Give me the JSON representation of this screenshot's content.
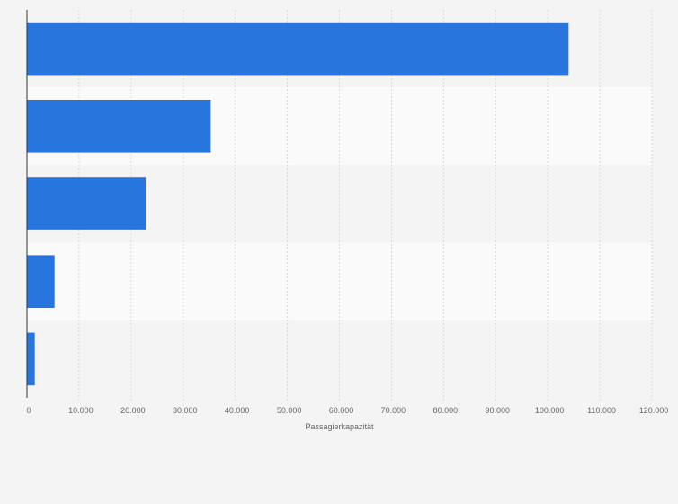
{
  "chart_data": {
    "type": "bar",
    "orientation": "horizontal",
    "categories": [
      "",
      "",
      "",
      "",
      ""
    ],
    "values": [
      104000,
      35300,
      22800,
      5300,
      1500
    ],
    "xlabel": "Passagierkapazität",
    "ylabel": "",
    "xlim": [
      0,
      120000
    ],
    "xticks": [
      0,
      10000,
      20000,
      30000,
      40000,
      50000,
      60000,
      70000,
      80000,
      90000,
      100000,
      110000,
      120000
    ],
    "xtick_labels": [
      "0",
      "10.000",
      "20.000",
      "30.000",
      "40.000",
      "50.000",
      "60.000",
      "70.000",
      "80.000",
      "90.000",
      "100.000",
      "110.000",
      "120.000"
    ],
    "grid": "vertical",
    "legend": "none",
    "colors": {
      "bar": "#2876dd",
      "band_odd": "#f4f4f4",
      "band_even": "#fafafa",
      "grid": "#d8d8d8",
      "axis": "#333333",
      "text": "#666666",
      "background": "#f4f4f4"
    }
  }
}
